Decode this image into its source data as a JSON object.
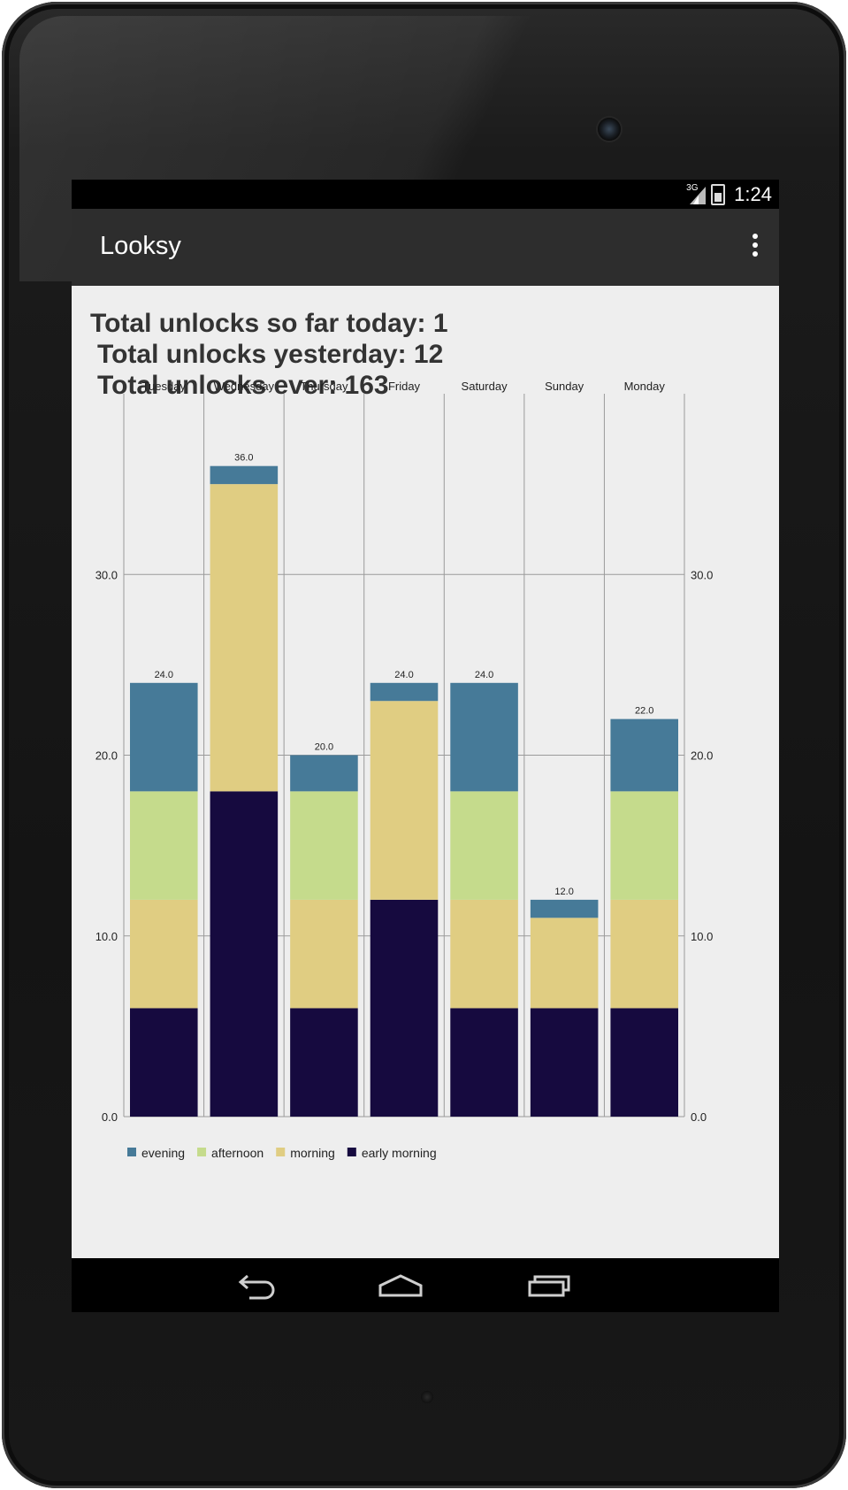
{
  "status_bar": {
    "network": "3G",
    "time": "1:24"
  },
  "action_bar": {
    "title": "Looksy"
  },
  "stats": {
    "today": "Total unlocks so far today: 1",
    "yesterday": "Total unlocks yesterday: 12",
    "ever": "Total unlocks ever: 163"
  },
  "icons": {
    "overflow": "overflow-menu-icon",
    "back": "back-icon",
    "home": "home-icon",
    "recents": "recents-icon"
  },
  "chart_data": {
    "type": "bar",
    "stacked": true,
    "categories": [
      "Tuesday",
      "Wednesday",
      "Thursday",
      "Friday",
      "Saturday",
      "Sunday",
      "Monday"
    ],
    "series": [
      {
        "name": "early morning",
        "color": "#160a3f",
        "values": [
          6,
          18,
          6,
          12,
          6,
          6,
          6
        ]
      },
      {
        "name": "morning",
        "color": "#e0cd82",
        "values": [
          6,
          17,
          6,
          11,
          6,
          5,
          6
        ]
      },
      {
        "name": "afternoon",
        "color": "#c5db8c",
        "values": [
          6,
          0,
          6,
          0,
          6,
          0,
          6
        ]
      },
      {
        "name": "evening",
        "color": "#467a98",
        "values": [
          6,
          1,
          2,
          1,
          6,
          1,
          4
        ]
      }
    ],
    "totals_labels": [
      "24.0",
      "36.0",
      "20.0",
      "24.0",
      "24.0",
      "12.0",
      "22.0"
    ],
    "legend_order": [
      "evening",
      "afternoon",
      "morning",
      "early morning"
    ],
    "yticks": [
      "0.0",
      "10.0",
      "20.0",
      "30.0"
    ],
    "ylim": [
      0,
      40
    ],
    "legend_position": "bottom-left",
    "grid": true,
    "y_axis": "both sides"
  }
}
